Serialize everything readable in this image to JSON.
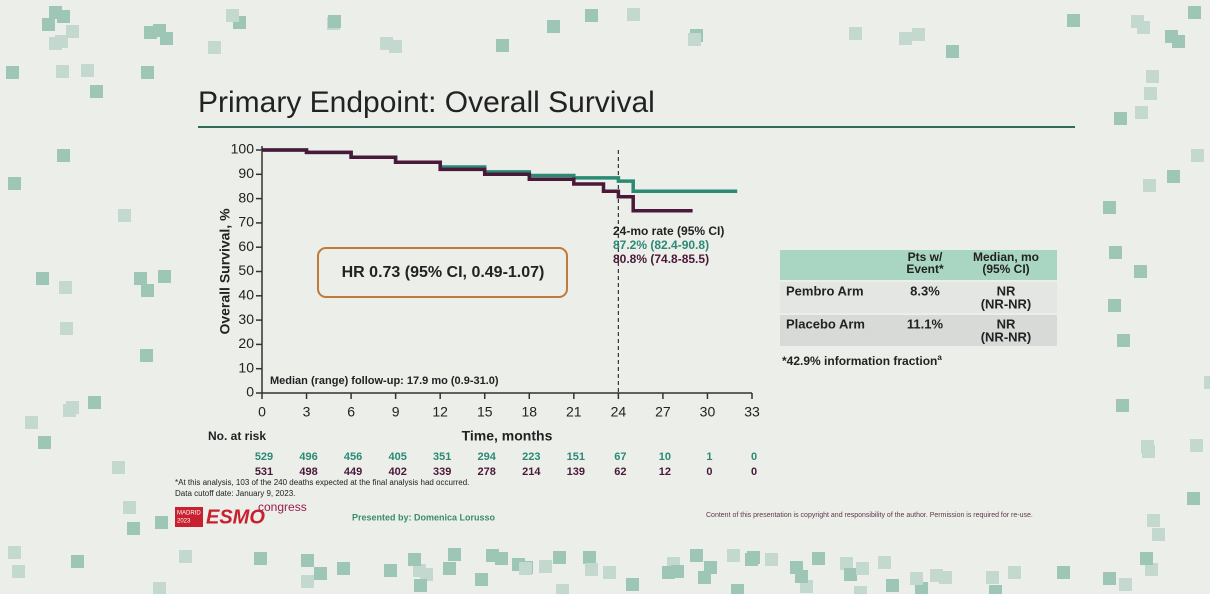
{
  "slide": {
    "title": "Primary Endpoint: Overall Survival",
    "table": {
      "header": [
        [
          "Pts w/",
          "Event*"
        ],
        [
          "Median, mo",
          "(95% CI)"
        ]
      ],
      "rows": [
        {
          "label": "Pembro Arm",
          "event": "8.3%",
          "median": [
            "NR",
            "(NR-NR)"
          ]
        },
        {
          "label": "Placebo Arm",
          "event": "11.1%",
          "median": [
            "NR",
            "(NR-NR)"
          ]
        }
      ],
      "note": "*42.9% information fraction",
      "note_sup": "a"
    },
    "footnotes": [
      "*At this analysis, 103 of the 240 deaths expected at the final analysis had occurred.",
      "Data cutoff date: January 9, 2023."
    ],
    "logo": {
      "city": "MADRID",
      "year": "2023",
      "name": "ESMO",
      "suffix": "congress"
    },
    "presenter": "Presented by: Domenica Lorusso",
    "copyright": "Content of this presentation is copyright and responsibility of the author. Permission is required for re-use."
  },
  "chart_data": {
    "type": "line",
    "step": true,
    "xlabel": "Time, months",
    "ylabel": "Overall Survival, %",
    "xlim": [
      0,
      33
    ],
    "ylim": [
      0,
      100
    ],
    "xticks": [
      0,
      3,
      6,
      9,
      12,
      15,
      18,
      21,
      24,
      27,
      30,
      33
    ],
    "yticks": [
      0,
      10,
      20,
      30,
      40,
      50,
      60,
      70,
      80,
      90,
      100
    ],
    "grid": false,
    "reference_x": 24,
    "series": [
      {
        "color": "#2a8a74",
        "x": [
          0,
          3,
          6,
          9,
          12,
          15,
          18,
          21,
          24,
          25,
          32
        ],
        "values": [
          100,
          99,
          97,
          95,
          93,
          91,
          89.5,
          88.5,
          87.2,
          83,
          83
        ]
      },
      {
        "color": "#4a1838",
        "x": [
          0,
          3,
          6,
          9,
          12,
          15,
          18,
          21,
          23,
          24,
          25,
          29
        ],
        "values": [
          100,
          99,
          97,
          95,
          92,
          90,
          88,
          86,
          83,
          80.8,
          75,
          75
        ]
      }
    ],
    "annotations": {
      "hr": "HR 0.73 (95% CI, 0.49-1.07)",
      "rate_title": "24-mo rate (95% CI)",
      "rates": [
        "87.2% (82.4-90.8)",
        "80.8% (74.8-85.5)"
      ],
      "follow_up": "Median (range) follow-up: 17.9 mo (0.9-31.0)"
    },
    "risk_table": {
      "label": "No. at risk",
      "rows": [
        [
          "529",
          "496",
          "456",
          "405",
          "351",
          "294",
          "223",
          "151",
          "67",
          "10",
          "1",
          "0"
        ],
        [
          "531",
          "498",
          "449",
          "402",
          "339",
          "278",
          "214",
          "139",
          "62",
          "12",
          "0",
          "0"
        ]
      ]
    }
  }
}
